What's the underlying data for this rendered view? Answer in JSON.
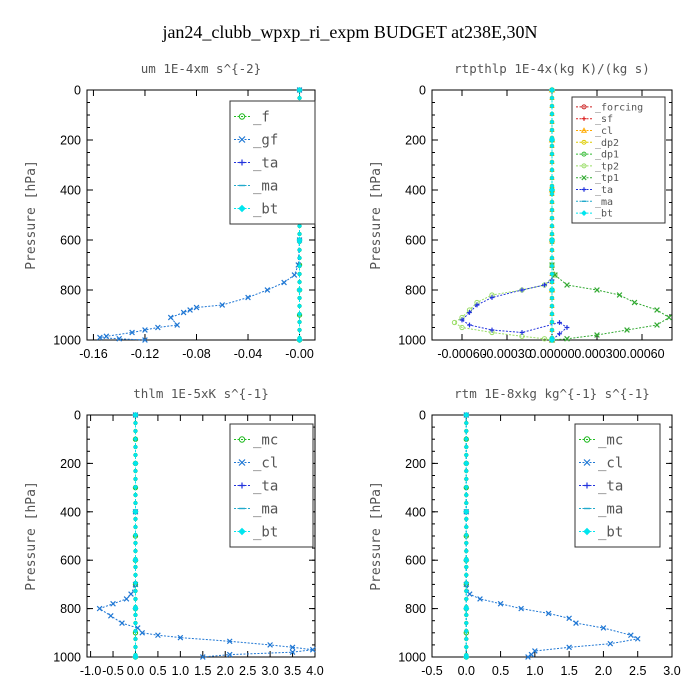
{
  "figure_title": "jan24_clubb_wpxp_ri_expm  BUDGET at238E,30N",
  "chart_data": [
    {
      "type": "line",
      "title": "um  1E-4xm s^{-2}",
      "ylabel": "Pressure [hPa]",
      "xlim": [
        -0.165,
        0.012
      ],
      "ylim": [
        1000,
        0
      ],
      "xticks": [
        -0.16,
        -0.12,
        -0.08,
        -0.04,
        0.0
      ],
      "xtick_labels": [
        "-0.16",
        "-0.12",
        "-0.08",
        "-0.04",
        "-0.00"
      ],
      "yticks": [
        0,
        200,
        400,
        600,
        800,
        1000
      ],
      "legend_position": "top-right",
      "series": [
        {
          "name": "_f",
          "color": "#22bb22",
          "marker": "o",
          "x": [
            0,
            0,
            0,
            0,
            0,
            0,
            0,
            0,
            0,
            0,
            0
          ],
          "y": [
            0,
            100,
            200,
            300,
            400,
            500,
            600,
            700,
            800,
            900,
            1000
          ]
        },
        {
          "name": "_gf",
          "color": "#1f77d4",
          "marker": "x",
          "x": [
            0,
            0,
            0,
            0,
            -0.001,
            -0.004,
            -0.012,
            -0.025,
            -0.04,
            -0.06,
            -0.08,
            -0.085,
            -0.09,
            -0.1,
            -0.095,
            -0.11,
            -0.12,
            -0.13,
            -0.15,
            -0.155,
            -0.14,
            -0.12
          ],
          "y": [
            0,
            200,
            400,
            600,
            700,
            740,
            770,
            800,
            830,
            860,
            870,
            880,
            890,
            910,
            940,
            950,
            960,
            970,
            985,
            990,
            995,
            1000
          ]
        },
        {
          "name": "_ta",
          "color": "#2233dd",
          "marker": "+",
          "x": [
            0,
            0,
            0,
            0,
            0,
            0
          ],
          "y": [
            0,
            200,
            400,
            600,
            800,
            1000
          ]
        },
        {
          "name": "_ma",
          "color": "#22aacc",
          "marker": "-",
          "x": [
            0,
            0,
            0,
            0,
            0,
            0
          ],
          "y": [
            0,
            200,
            400,
            600,
            800,
            1000
          ]
        },
        {
          "name": "_bt",
          "color": "#00e5ee",
          "marker": "d",
          "x": [
            0,
            0,
            0,
            0,
            0,
            0
          ],
          "y": [
            0,
            200,
            400,
            600,
            800,
            1000
          ]
        }
      ]
    },
    {
      "type": "line",
      "title": "rtpthlp  1E-4x(kg K)/(kg s)",
      "ylabel": "Pressure [hPa]",
      "xlim": [
        -0.0008,
        0.0008
      ],
      "ylim": [
        1000,
        0
      ],
      "xticks": [
        -0.0006,
        -0.0003,
        0.0,
        0.0003,
        0.0006
      ],
      "xtick_labels": [
        "-0.00060",
        "-0.00030",
        "0.00000",
        "0.00030",
        "0.00060"
      ],
      "yticks": [
        0,
        200,
        400,
        600,
        800,
        1000
      ],
      "legend_position": "top-right",
      "series": [
        {
          "name": "_forcing",
          "color": "#cc2222",
          "marker": "o",
          "x": [
            0,
            0,
            0,
            0,
            0,
            0
          ],
          "y": [
            0,
            200,
            400,
            600,
            800,
            1000
          ]
        },
        {
          "name": "_sf",
          "color": "#dd2222",
          "marker": "+",
          "x": [
            0,
            0,
            0,
            0,
            0,
            0
          ],
          "y": [
            0,
            200,
            400,
            600,
            800,
            1000
          ]
        },
        {
          "name": "_cl",
          "color": "#ffaa00",
          "marker": "^",
          "x": [
            0,
            0,
            0,
            0,
            0,
            0
          ],
          "y": [
            0,
            200,
            400,
            600,
            800,
            1000
          ]
        },
        {
          "name": "_dp2",
          "color": "#ddcc00",
          "marker": "o",
          "x": [
            0,
            0,
            0,
            0,
            0,
            0
          ],
          "y": [
            0,
            200,
            400,
            600,
            800,
            1000
          ]
        },
        {
          "name": "_dp1",
          "color": "#33bb33",
          "marker": "o",
          "x": [
            0,
            0,
            0,
            0,
            0,
            0
          ],
          "y": [
            0,
            200,
            400,
            600,
            800,
            1000
          ]
        },
        {
          "name": "_tp2",
          "color": "#99dd66",
          "marker": "o",
          "x": [
            0,
            2e-05,
            -5e-05,
            -0.0002,
            -0.0004,
            -0.0005,
            -0.00055,
            -0.0006,
            -0.00065,
            -0.0006,
            -0.0004,
            -0.0002,
            -5e-05,
            0
          ],
          "y": [
            700,
            740,
            780,
            800,
            820,
            850,
            880,
            910,
            930,
            950,
            970,
            985,
            995,
            1000
          ]
        },
        {
          "name": "_tp1",
          "color": "#33aa33",
          "marker": "x",
          "x": [
            0,
            2e-05,
            0.0001,
            0.0003,
            0.00045,
            0.00055,
            0.0007,
            0.00078,
            0.0007,
            0.0005,
            0.0003,
            0.0001,
            0
          ],
          "y": [
            700,
            740,
            780,
            800,
            820,
            850,
            880,
            910,
            940,
            960,
            980,
            995,
            1000
          ]
        },
        {
          "name": "_ta",
          "color": "#2233dd",
          "marker": "+",
          "x": [
            0,
            -5e-05,
            -0.0002,
            -0.0004,
            -0.0005,
            -0.00055,
            -0.0006,
            -0.00055,
            -0.0004,
            -0.0002,
            5e-05,
            0.0001,
            5e-05,
            0
          ],
          "y": [
            760,
            780,
            800,
            830,
            860,
            890,
            920,
            940,
            960,
            970,
            930,
            950,
            975,
            1000
          ]
        },
        {
          "name": "_ma",
          "color": "#22aacc",
          "marker": "-",
          "x": [
            0,
            0,
            0,
            0,
            0,
            0
          ],
          "y": [
            0,
            200,
            400,
            600,
            800,
            1000
          ]
        },
        {
          "name": "_bt",
          "color": "#00e5ee",
          "marker": "d",
          "x": [
            0,
            0,
            0,
            0,
            0,
            0
          ],
          "y": [
            0,
            200,
            400,
            600,
            800,
            1000
          ]
        }
      ]
    },
    {
      "type": "line",
      "title": "thlm  1E-5xK s^{-1}",
      "ylabel": "Pressure [hPa]",
      "xlim": [
        -1.08,
        4.0
      ],
      "ylim": [
        1000,
        0
      ],
      "xticks": [
        -1.0,
        -0.5,
        0.0,
        0.5,
        1.0,
        1.5,
        2.0,
        2.5,
        3.0,
        3.5,
        4.0
      ],
      "xtick_labels": [
        "-1.0",
        "-0.5",
        "0.0",
        "0.5",
        "1.0",
        "1.5",
        "2.0",
        "2.5",
        "3.0",
        "3.5",
        "4.0"
      ],
      "yticks": [
        0,
        200,
        400,
        600,
        800,
        1000
      ],
      "legend_position": "top-right",
      "series": [
        {
          "name": "_mc",
          "color": "#22bb22",
          "marker": "o",
          "x": [
            0,
            0,
            0,
            0,
            0,
            0,
            0,
            0,
            0,
            0,
            0
          ],
          "y": [
            0,
            100,
            200,
            300,
            400,
            500,
            600,
            700,
            800,
            900,
            1000
          ]
        },
        {
          "name": "_cl",
          "color": "#1f77d4",
          "marker": "x",
          "x": [
            0,
            0,
            0,
            -0.1,
            -0.2,
            -0.5,
            -0.8,
            -0.55,
            -0.3,
            0.05,
            0.15,
            0.5,
            1.0,
            2.1,
            3.0,
            3.5,
            3.95,
            3.5,
            2.1,
            1.5
          ],
          "y": [
            0,
            400,
            700,
            740,
            760,
            780,
            800,
            830,
            860,
            880,
            900,
            910,
            920,
            935,
            950,
            960,
            970,
            980,
            990,
            1000
          ]
        },
        {
          "name": "_ta",
          "color": "#2233dd",
          "marker": "+",
          "x": [
            0,
            0,
            0,
            0,
            0,
            0
          ],
          "y": [
            0,
            200,
            400,
            600,
            800,
            1000
          ]
        },
        {
          "name": "_ma",
          "color": "#22aacc",
          "marker": "-",
          "x": [
            0,
            0,
            0,
            0,
            0,
            0
          ],
          "y": [
            0,
            200,
            400,
            600,
            800,
            1000
          ]
        },
        {
          "name": "_bt",
          "color": "#00e5ee",
          "marker": "d",
          "x": [
            0,
            0,
            0,
            0,
            0,
            0
          ],
          "y": [
            0,
            200,
            400,
            600,
            800,
            1000
          ]
        }
      ]
    },
    {
      "type": "line",
      "title": "rtm  1E-8xkg kg^{-1} s^{-1}",
      "ylabel": "Pressure [hPa]",
      "xlim": [
        -0.5,
        3.0
      ],
      "ylim": [
        1000,
        0
      ],
      "xticks": [
        -0.5,
        0.0,
        0.5,
        1.0,
        1.5,
        2.0,
        2.5,
        3.0
      ],
      "xtick_labels": [
        "-0.5",
        "0.0",
        "0.5",
        "1.0",
        "1.5",
        "2.0",
        "2.5",
        "3.0"
      ],
      "yticks": [
        0,
        200,
        400,
        600,
        800,
        1000
      ],
      "legend_position": "top-right",
      "series": [
        {
          "name": "_mc",
          "color": "#22bb22",
          "marker": "o",
          "x": [
            0,
            0,
            0,
            0,
            0,
            0,
            0,
            0,
            0,
            0,
            0
          ],
          "y": [
            0,
            100,
            200,
            300,
            400,
            500,
            600,
            700,
            800,
            900,
            1000
          ]
        },
        {
          "name": "_cl",
          "color": "#1f77d4",
          "marker": "x",
          "x": [
            0,
            0,
            0,
            0.05,
            0.2,
            0.5,
            0.8,
            1.2,
            1.5,
            1.6,
            2.0,
            2.4,
            2.5,
            2.1,
            1.5,
            1.0,
            0.95,
            0.9
          ],
          "y": [
            0,
            400,
            700,
            740,
            760,
            780,
            800,
            820,
            840,
            860,
            880,
            910,
            925,
            945,
            960,
            975,
            990,
            1000
          ]
        },
        {
          "name": "_ta",
          "color": "#2233dd",
          "marker": "+",
          "x": [
            0,
            0,
            0,
            0,
            0,
            0
          ],
          "y": [
            0,
            200,
            400,
            600,
            800,
            1000
          ]
        },
        {
          "name": "_ma",
          "color": "#22aacc",
          "marker": "-",
          "x": [
            0,
            0,
            0,
            0,
            0,
            0
          ],
          "y": [
            0,
            200,
            400,
            600,
            800,
            1000
          ]
        },
        {
          "name": "_bt",
          "color": "#00e5ee",
          "marker": "d",
          "x": [
            0,
            0,
            0,
            0,
            0,
            0
          ],
          "y": [
            0,
            200,
            400,
            600,
            800,
            1000
          ]
        }
      ]
    }
  ]
}
